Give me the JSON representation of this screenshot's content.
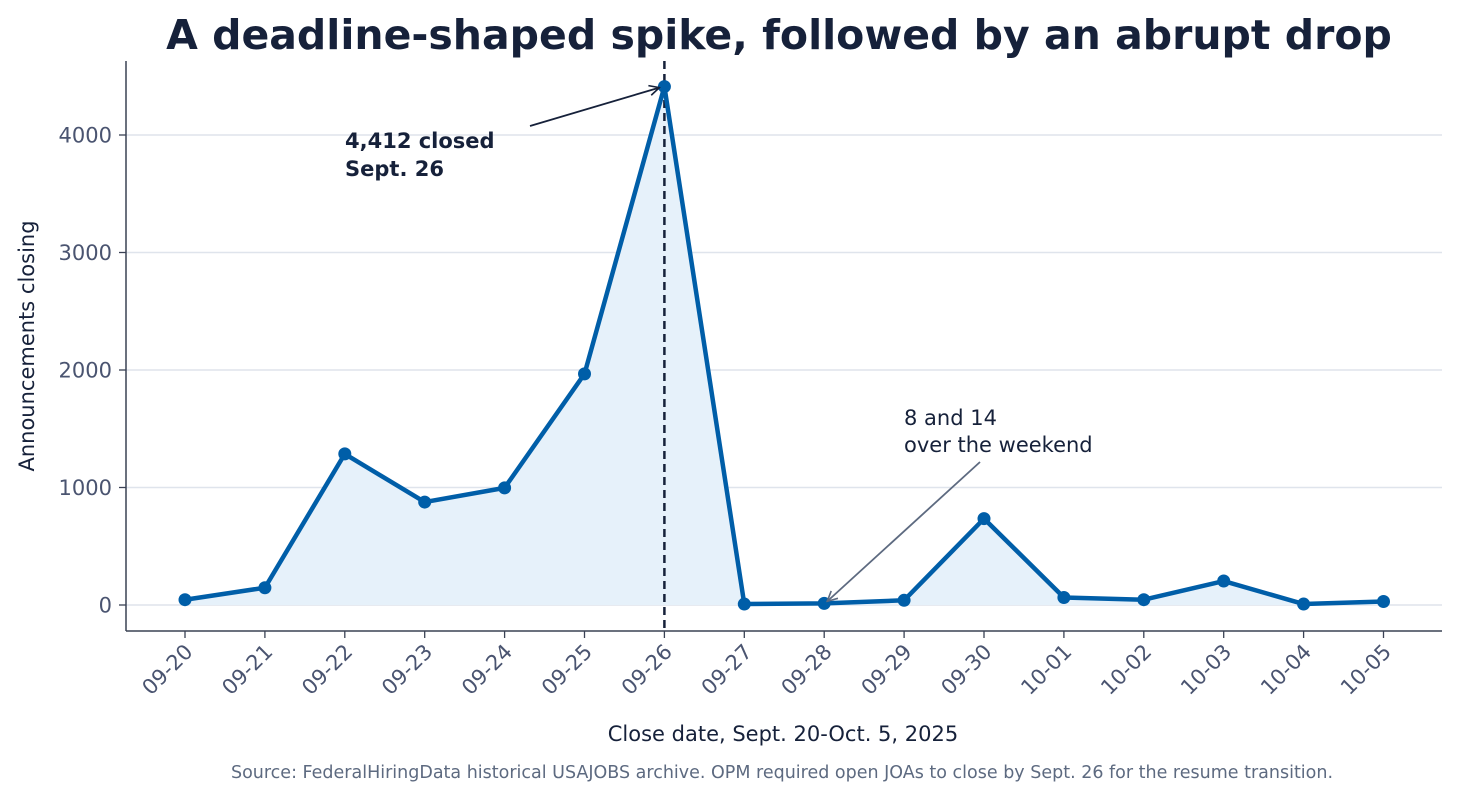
{
  "chart_data": {
    "type": "line",
    "title": "A deadline-shaped spike, followed by an abrupt drop",
    "xlabel": "Close date, Sept. 20-Oct. 5, 2025",
    "ylabel": "Announcements closing",
    "categories": [
      "09-20",
      "09-21",
      "09-22",
      "09-23",
      "09-24",
      "09-25",
      "09-26",
      "09-27",
      "09-28",
      "09-29",
      "09-30",
      "10-01",
      "10-02",
      "10-03",
      "10-04",
      "10-05"
    ],
    "values": [
      45,
      147,
      1286,
      876,
      997,
      1967,
      4412,
      8,
      14,
      40,
      735,
      64,
      45,
      204,
      8,
      30
    ],
    "ylim": [
      -215,
      4640
    ],
    "yticks": [
      0,
      1000,
      2000,
      3000,
      4000
    ],
    "grid": "horizontal",
    "fill_under_line": true,
    "reference_line": {
      "category": "09-26",
      "style": "dashed"
    },
    "annotations": [
      {
        "target": "09-26",
        "lines": [
          "4,412 closed",
          "Sept. 26"
        ],
        "bold": true
      },
      {
        "target": "09-28",
        "lines": [
          "8 and 14",
          "over the weekend"
        ],
        "bold": false
      }
    ],
    "source": "Source: FederalHiringData historical USAJOBS archive. OPM required open JOAs to close by Sept. 26 for the resume transition."
  },
  "colors": {
    "line": "#005ea8",
    "fill": "#e6f1fa",
    "title": "#16213a",
    "tick_text": "#4a5470",
    "grid": "#dfe4ec",
    "axis": "#3a4254",
    "annotation_arrow": "#16213a",
    "annotation_arrow_light": "#5d6a80",
    "source_text": "#5d6a80",
    "reference_line": "#16213a"
  }
}
